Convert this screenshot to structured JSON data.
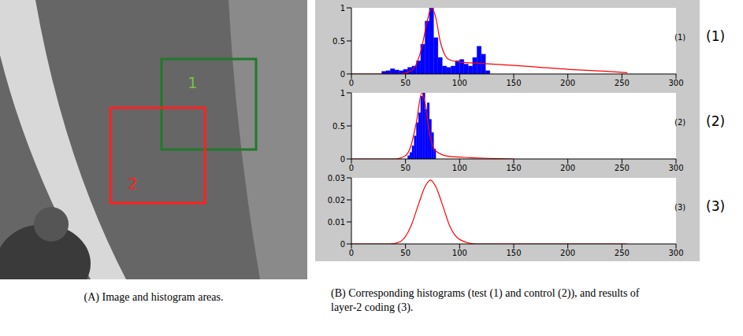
{
  "panel_a": {
    "caption": "(A) Image and histogram areas.",
    "regions": [
      {
        "label": "1",
        "color": "#1f7a2a",
        "label_color": "#7cc043"
      },
      {
        "label": "2",
        "color": "#ff2020",
        "label_color": "#ff2020"
      }
    ]
  },
  "panel_b": {
    "caption": "(B) Corresponding histograms (test (1) and control (2)), and results of layer-2 coding (3)."
  },
  "chart_data": [
    {
      "type": "histogram",
      "label": "(1)",
      "color": "#0000ff",
      "bins": [
        28,
        32,
        36,
        40,
        44,
        48,
        52,
        56,
        60,
        64,
        68,
        72,
        76,
        80,
        84,
        88,
        92,
        96,
        100,
        104,
        108,
        112,
        116,
        120,
        124,
        128
      ],
      "counts": [
        0.04,
        0.05,
        0.08,
        0.06,
        0.05,
        0.07,
        0.1,
        0.12,
        0.2,
        0.45,
        0.8,
        1.0,
        0.55,
        0.25,
        0.12,
        0.1,
        0.12,
        0.2,
        0.22,
        0.15,
        0.12,
        0.25,
        0.42,
        0.3,
        0.05
      ],
      "curve": {
        "color": "#ff0000",
        "x": [
          0,
          45,
          55,
          60,
          65,
          70,
          74,
          78,
          82,
          86,
          90,
          100,
          120,
          150,
          175,
          200,
          225,
          255
        ],
        "values": [
          0,
          0,
          0.05,
          0.15,
          0.4,
          0.8,
          1.0,
          0.85,
          0.5,
          0.3,
          0.22,
          0.18,
          0.16,
          0.13,
          0.1,
          0.07,
          0.05,
          0.02
        ]
      },
      "xlim": [
        0,
        300
      ],
      "xticks": [
        0,
        50,
        100,
        150,
        200,
        250,
        300
      ],
      "ylim": [
        0,
        1
      ],
      "yticks": [
        0,
        0.5,
        1
      ]
    },
    {
      "type": "histogram",
      "label": "(2)",
      "color": "#0000ff",
      "bins": [
        52,
        54,
        56,
        58,
        60,
        62,
        64,
        66,
        68,
        70,
        72,
        74,
        76,
        78
      ],
      "counts": [
        0.05,
        0.1,
        0.2,
        0.35,
        0.55,
        0.7,
        0.95,
        1.0,
        0.75,
        0.85,
        0.6,
        0.4,
        0.15
      ],
      "curve": {
        "color": "#ff0000",
        "x": [
          0,
          40,
          50,
          55,
          60,
          65,
          68,
          72,
          78,
          90,
          110,
          150
        ],
        "values": [
          0,
          0,
          0.05,
          0.2,
          0.55,
          1.0,
          0.85,
          0.4,
          0.12,
          0.04,
          0.02,
          0
        ]
      },
      "xlim": [
        0,
        300
      ],
      "xticks": [
        0,
        50,
        100,
        150,
        200,
        250,
        300
      ],
      "ylim": [
        0,
        1
      ],
      "yticks": [
        0,
        0.5,
        1
      ]
    },
    {
      "type": "line",
      "label": "(3)",
      "curve": {
        "color": "#ff0000",
        "x": [
          0,
          35,
          45,
          55,
          62,
          68,
          73,
          78,
          84,
          91,
          100,
          115,
          255
        ],
        "values": [
          0,
          0,
          0.001,
          0.008,
          0.018,
          0.026,
          0.029,
          0.026,
          0.018,
          0.008,
          0.002,
          0,
          0
        ]
      },
      "xlim": [
        0,
        300
      ],
      "xticks": [
        0,
        50,
        100,
        150,
        200,
        250,
        300
      ],
      "ylim": [
        0,
        0.03
      ],
      "yticks": [
        0,
        0.01,
        0.02,
        0.03
      ]
    }
  ]
}
